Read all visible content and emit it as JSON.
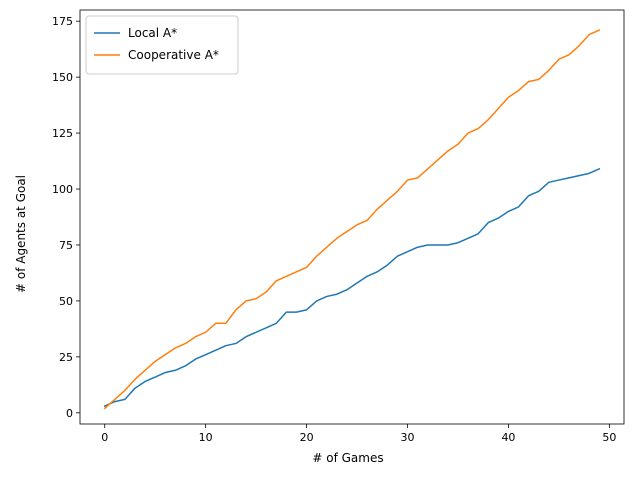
{
  "chart_data": {
    "type": "line",
    "title": "",
    "xlabel": "# of Games",
    "ylabel": "# of Agents at Goal",
    "xlim": [
      -2.45,
      51.45
    ],
    "ylim": [
      -5,
      180
    ],
    "xticks": [
      0,
      10,
      20,
      30,
      40,
      50
    ],
    "yticks": [
      0,
      25,
      50,
      75,
      100,
      125,
      150,
      175
    ],
    "grid": false,
    "legend_position": "top-left",
    "x": [
      0,
      1,
      2,
      3,
      4,
      5,
      6,
      7,
      8,
      9,
      10,
      11,
      12,
      13,
      14,
      15,
      16,
      17,
      18,
      19,
      20,
      21,
      22,
      23,
      24,
      25,
      26,
      27,
      28,
      29,
      30,
      31,
      32,
      33,
      34,
      35,
      36,
      37,
      38,
      39,
      40,
      41,
      42,
      43,
      44,
      45,
      46,
      47,
      48,
      49
    ],
    "series": [
      {
        "name": "Local A*",
        "color": "#1f77b4",
        "values": [
          3,
          5,
          6,
          11,
          14,
          16,
          18,
          19,
          21,
          24,
          26,
          28,
          30,
          31,
          34,
          36,
          38,
          40,
          45,
          45,
          46,
          50,
          52,
          53,
          55,
          58,
          61,
          63,
          66,
          70,
          72,
          74,
          75,
          75,
          75,
          76,
          78,
          80,
          85,
          87,
          90,
          92,
          97,
          99,
          103,
          104,
          105,
          106,
          107,
          109
        ]
      },
      {
        "name": "Cooperative A*",
        "color": "#ff7f0e",
        "values": [
          2,
          6,
          10,
          15,
          19,
          23,
          26,
          29,
          31,
          34,
          36,
          40,
          40,
          46,
          50,
          51,
          54,
          59,
          61,
          63,
          65,
          70,
          74,
          78,
          81,
          84,
          86,
          91,
          95,
          99,
          104,
          105,
          109,
          113,
          117,
          120,
          125,
          127,
          131,
          136,
          141,
          144,
          148,
          149,
          153,
          158,
          160,
          164,
          169,
          171
        ]
      }
    ]
  }
}
